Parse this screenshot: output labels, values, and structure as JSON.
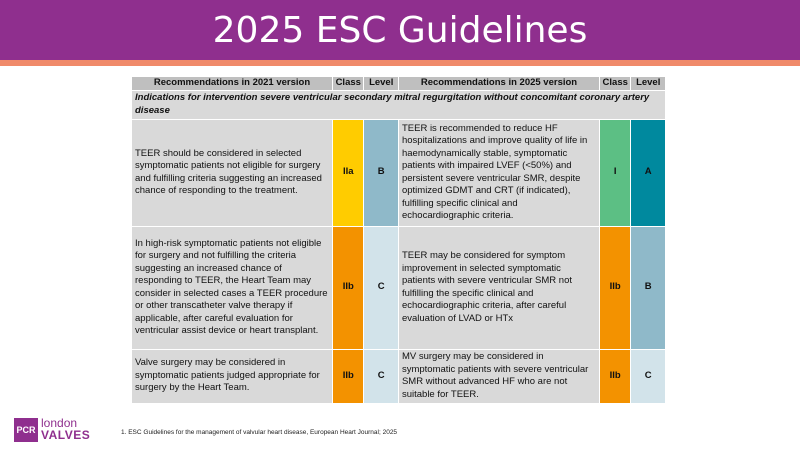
{
  "title": "2025 ESC Guidelines",
  "table": {
    "headers": {
      "rec_2021": "Recommendations in 2021 version",
      "class_2021": "Class",
      "level_2021": "Level",
      "rec_2025": "Recommendations in 2025 version",
      "class_2025": "Class",
      "level_2025": "Level"
    },
    "section_title": "Indications for intervention severe ventricular secondary mitral regurgitation without concomitant coronary artery disease",
    "rows": [
      {
        "rec_2021": "TEER should be considered in selected symptomatic patients not eligible for surgery and fulfilling criteria suggesting an increased chance of responding to the treatment.",
        "class_2021": "IIa",
        "level_2021": "B",
        "rec_2025": "TEER is recommended to reduce HF hospitalizations and improve quality of life in haemodynamically stable, symptomatic patients with impaired LVEF (<50%) and persistent severe ventricular SMR, despite optimized GDMT and CRT (if indicated), fulfilling specific clinical and echocardiographic criteria.",
        "class_2025": "I",
        "level_2025": "A"
      },
      {
        "rec_2021": "In high-risk symptomatic patients not eligible for surgery and not fulfilling the criteria suggesting an increased chance of responding to TEER, the Heart Team may consider in selected cases a TEER procedure or other transcatheter valve therapy if applicable, after careful evaluation for ventricular assist device or heart transplant.",
        "class_2021": "IIb",
        "level_2021": "C",
        "rec_2025": "TEER may be considered for symptom improvement in selected symptomatic patients with severe ventricular SMR not fulfilling the specific clinical and echocardiographic criteria, after careful evaluation of LVAD or HTx",
        "class_2025": "IIb",
        "level_2025": "B"
      },
      {
        "rec_2021": "Valve surgery may be considered in symptomatic patients judged appropriate for surgery by the Heart Team.",
        "class_2021": "IIb",
        "level_2021": "C",
        "rec_2025": "MV surgery may be considered in symptomatic patients with severe ventricular SMR without advanced HF who are not suitable for TEER.",
        "class_2025": "IIb",
        "level_2025": "C"
      }
    ]
  },
  "colors": {
    "header_purple": "#8f2f8e",
    "stripe_orange": "#f08a6a",
    "class_IIa": "#ffcc00",
    "class_IIb": "#f39200",
    "class_I": "#5cbf84",
    "level_A": "#00899e",
    "level_B": "#8fb9c9",
    "level_C": "#d2e3ea"
  },
  "logo": {
    "mark": "PCR",
    "line1": "london",
    "line2": "VALVES"
  },
  "footnote": "1. ESC Guidelines for the management of valvular heart disease, European Heart Journal; 2025"
}
